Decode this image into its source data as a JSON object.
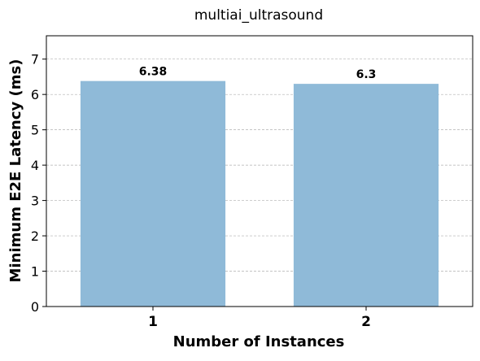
{
  "chart_data": {
    "type": "bar",
    "title": "multiai_ultrasound",
    "xlabel": "Number of Instances",
    "ylabel": "Minimum E2E Latency (ms)",
    "categories": [
      "1",
      "2"
    ],
    "values": [
      6.38,
      6.3
    ],
    "value_labels": [
      "6.38",
      "6.3"
    ],
    "ylim": [
      0,
      7.66
    ],
    "yticks": [
      0,
      1,
      2,
      3,
      4,
      5,
      6,
      7
    ],
    "grid": "horizontal dashed",
    "bar_color": "#8fbad8"
  }
}
